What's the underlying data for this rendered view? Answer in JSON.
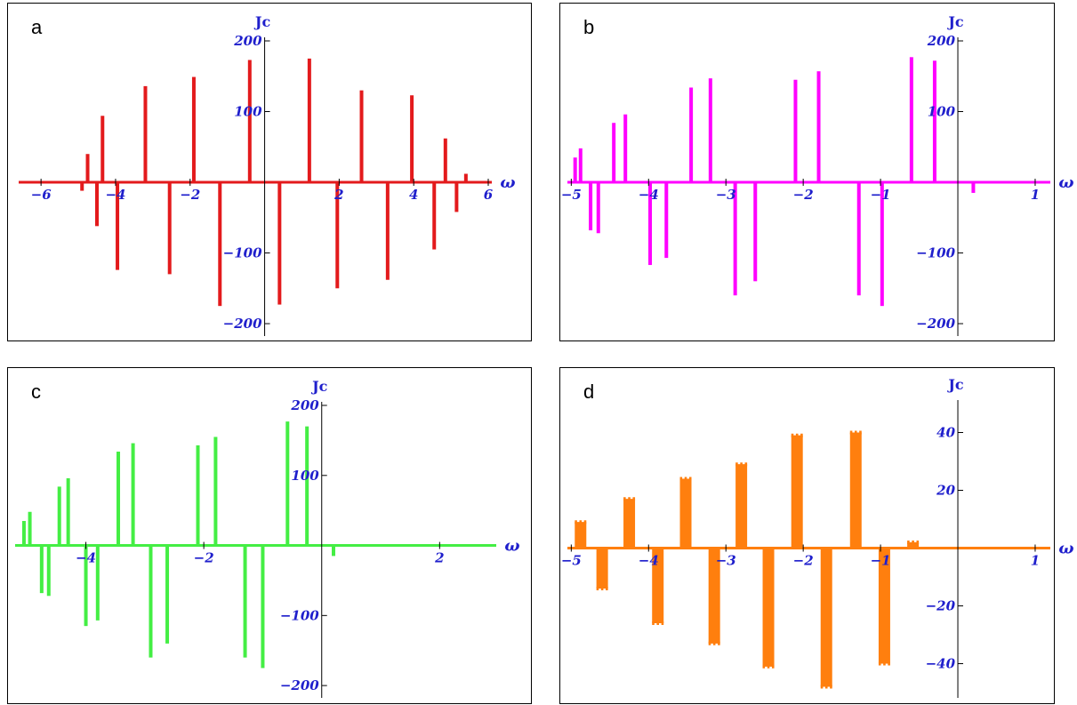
{
  "chart_data": [
    {
      "type": "bar",
      "panel_label": "a",
      "xlabel": "ω",
      "ylabel": "Jc",
      "color": "#e31a1c",
      "xlim": [
        -6.6,
        6.0
      ],
      "ylim": [
        -210,
        200
      ],
      "xticks": [
        -6,
        -4,
        -2,
        2,
        4,
        6
      ],
      "yticks": [
        -200,
        -100,
        100,
        200
      ],
      "tick_labels_x": [
        "−6",
        "−4",
        "−2",
        "2",
        "4",
        "6"
      ],
      "tick_labels_y": [
        "−200",
        "−100",
        "100",
        "200"
      ],
      "x": [
        -4.9,
        -4.75,
        -4.5,
        -4.35,
        -3.95,
        -3.2,
        -2.55,
        -1.9,
        -1.2,
        -0.4,
        0.4,
        1.2,
        1.95,
        2.6,
        3.3,
        3.95,
        4.55,
        4.85,
        5.15,
        5.4
      ],
      "values": [
        -12,
        40,
        -62,
        94,
        -124,
        136,
        -130,
        149,
        -175,
        173,
        -173,
        175,
        -150,
        130,
        -138,
        123,
        -95,
        62,
        -42,
        12
      ]
    },
    {
      "type": "bar",
      "panel_label": "b",
      "xlabel": "ω",
      "ylabel": "Jc",
      "color": "#ff00ff",
      "xlim": [
        -5.05,
        1.15
      ],
      "ylim": [
        -210,
        200
      ],
      "xticks": [
        -5,
        -4,
        -3,
        -2,
        -1,
        1
      ],
      "yticks": [
        -200,
        -100,
        100,
        200
      ],
      "tick_labels_x": [
        "−5",
        "−4",
        "−3",
        "−2",
        "−1",
        "1"
      ],
      "tick_labels_y": [
        "−200",
        "−100",
        "100",
        "200"
      ],
      "x": [
        -4.95,
        -4.88,
        -4.75,
        -4.65,
        -4.45,
        -4.3,
        -3.98,
        -3.77,
        -3.45,
        -3.2,
        -2.88,
        -2.62,
        -2.1,
        -1.8,
        -1.28,
        -0.98,
        -0.6,
        -0.3,
        0.2
      ],
      "values": [
        35,
        48,
        -68,
        -72,
        84,
        96,
        -117,
        -107,
        134,
        147,
        -160,
        -140,
        145,
        157,
        -160,
        -175,
        177,
        172,
        -15
      ]
    },
    {
      "type": "bar",
      "panel_label": "c",
      "xlabel": "ω",
      "ylabel": "Jc",
      "color": "#44ee44",
      "xlim": [
        -5.2,
        2.9
      ],
      "ylim": [
        -210,
        200
      ],
      "xticks": [
        -4,
        -2,
        2
      ],
      "yticks": [
        -200,
        -100,
        100,
        200
      ],
      "tick_labels_x": [
        "−4",
        "−2",
        "2"
      ],
      "tick_labels_y": [
        "−200",
        "−100",
        "100",
        "200"
      ],
      "x": [
        -5.05,
        -4.95,
        -4.75,
        -4.63,
        -4.45,
        -4.3,
        -4.0,
        -3.8,
        -3.45,
        -3.2,
        -2.9,
        -2.62,
        -2.1,
        -1.8,
        -1.3,
        -1.0,
        -0.58,
        -0.25,
        0.2
      ],
      "values": [
        35,
        48,
        -68,
        -72,
        84,
        96,
        -115,
        -107,
        134,
        146,
        -160,
        -140,
        143,
        155,
        -160,
        -175,
        177,
        170,
        -15
      ]
    },
    {
      "type": "bar",
      "panel_label": "d",
      "xlabel": "ω",
      "ylabel": "Jc",
      "color": "#ff7f0e",
      "xlim": [
        -5.05,
        1.15
      ],
      "ylim": [
        -50,
        50
      ],
      "xticks": [
        -5,
        -4,
        -3,
        -2,
        -1,
        1
      ],
      "yticks": [
        -40,
        -20,
        20,
        40
      ],
      "tick_labels_x": [
        "−5",
        "−4",
        "−3",
        "−2",
        "−1",
        "1"
      ],
      "tick_labels_y": [
        "−40",
        "−20",
        "20",
        "40"
      ],
      "x": [
        -4.88,
        -4.6,
        -4.25,
        -3.88,
        -3.52,
        -3.15,
        -2.8,
        -2.45,
        -2.08,
        -1.7,
        -1.32,
        -0.95,
        -0.58
      ],
      "values": [
        9,
        -14,
        17,
        -26,
        24,
        -33,
        29,
        -41,
        39,
        -48,
        40,
        -40,
        2
      ]
    }
  ]
}
